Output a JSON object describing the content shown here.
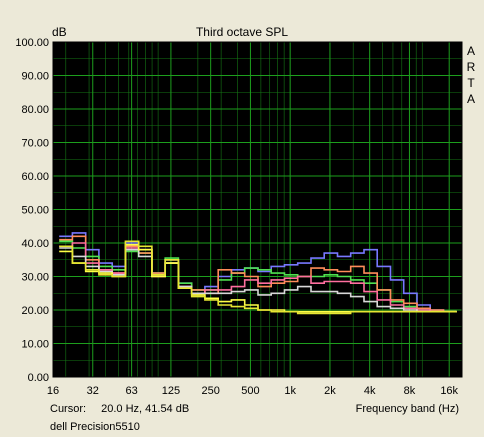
{
  "chart_data": {
    "type": "line",
    "title": "Third octave SPL",
    "ylabel": "dB",
    "xlabel": "Frequency band (Hz)",
    "watermark": "ARTA",
    "ylim": [
      0,
      100
    ],
    "x_scale": "log",
    "yticks": [
      "0.00",
      "10.00",
      "20.00",
      "30.00",
      "40.00",
      "50.00",
      "60.00",
      "70.00",
      "80.00",
      "90.00",
      "100.00"
    ],
    "xticks": [
      {
        "label": "16",
        "hz": 16
      },
      {
        "label": "32",
        "hz": 32
      },
      {
        "label": "63",
        "hz": 63
      },
      {
        "label": "125",
        "hz": 125
      },
      {
        "label": "250",
        "hz": 250
      },
      {
        "label": "500",
        "hz": 500
      },
      {
        "label": "1k",
        "hz": 1000
      },
      {
        "label": "2k",
        "hz": 2000
      },
      {
        "label": "4k",
        "hz": 4000
      },
      {
        "label": "8k",
        "hz": 8000
      },
      {
        "label": "16k",
        "hz": 16000
      }
    ],
    "bands": [
      "20",
      "25",
      "31.5",
      "40",
      "50",
      "63",
      "80",
      "100",
      "125",
      "160",
      "200",
      "250",
      "315",
      "400",
      "500",
      "630",
      "800",
      "1k",
      "1.25k",
      "1.6k",
      "2k",
      "2.5k",
      "3.15k",
      "4k",
      "5k",
      "6.3k",
      "8k",
      "10k",
      "12.5k",
      "16k"
    ],
    "grid": true,
    "colors": {
      "background": "#000000",
      "grid": "#1d9e1d",
      "frame": "#ece9d8"
    },
    "series": [
      {
        "color": "#7878ff",
        "values": [
          42,
          43,
          38,
          34,
          33,
          40,
          38,
          31,
          35,
          28,
          26,
          27,
          30,
          32,
          32.5,
          31.5,
          33,
          33.5,
          34,
          35.5,
          37,
          36,
          37,
          38,
          33,
          29,
          25,
          21.5,
          20,
          19.5
        ]
      },
      {
        "color": "#4fe04f",
        "values": [
          40.5,
          38.5,
          36,
          33,
          32,
          37.5,
          37,
          31,
          35.5,
          28,
          26,
          26,
          29,
          31,
          32.5,
          32,
          31,
          30.5,
          30,
          30,
          30.5,
          30,
          29,
          28,
          26,
          22.5,
          21,
          20,
          19.5,
          19.5
        ]
      },
      {
        "color": "#ff8c5a",
        "values": [
          41,
          42,
          35,
          32,
          31,
          39,
          37,
          31,
          34,
          27,
          26,
          25,
          32,
          31,
          30,
          27,
          28,
          28.5,
          30,
          32.5,
          32,
          31.5,
          33,
          31,
          26,
          23,
          22,
          20.5,
          20,
          19.5
        ]
      },
      {
        "color": "#ff6f9f",
        "values": [
          39,
          40,
          34,
          32,
          31,
          38.5,
          38,
          30,
          35,
          27,
          25,
          26,
          26,
          27,
          29,
          28,
          29,
          29.5,
          30,
          28,
          28.5,
          28.5,
          28,
          25.5,
          23,
          21.5,
          20.5,
          20,
          19.5,
          19.5
        ]
      },
      {
        "color": "#d8d8d8",
        "values": [
          38.5,
          36,
          33,
          31.5,
          30.5,
          38,
          36,
          30.5,
          34,
          27,
          25,
          25,
          25,
          25.5,
          26,
          24.5,
          25,
          26,
          27,
          25.5,
          25.5,
          25,
          24,
          22.5,
          21,
          20.5,
          20,
          19.5,
          19.5,
          19.5
        ]
      },
      {
        "color": "#ffff46",
        "values": [
          37.5,
          34,
          31.5,
          31,
          30,
          39.5,
          38,
          30,
          34,
          26.5,
          24.5,
          23.5,
          22.5,
          23,
          21.5,
          20,
          20,
          19.5,
          19.5,
          19.5,
          19.5,
          19.5,
          19.5,
          19.5,
          19.5,
          19.5,
          19.5,
          19.5,
          19.5,
          19.5
        ]
      },
      {
        "color": "#e6e632",
        "values": [
          39,
          34,
          32,
          30.5,
          30,
          40.5,
          39,
          30.5,
          35,
          26.5,
          24,
          23,
          21.5,
          21,
          20.5,
          20,
          19.5,
          19.5,
          19,
          19,
          19,
          19,
          19.5,
          19.5,
          19.5,
          19.5,
          19.5,
          19.5,
          19.5,
          19.5
        ]
      }
    ]
  },
  "status": {
    "cursor_label": "Cursor:",
    "cursor_value": "20.0 Hz, 41.54 dB",
    "device": "dell Precision5510"
  }
}
